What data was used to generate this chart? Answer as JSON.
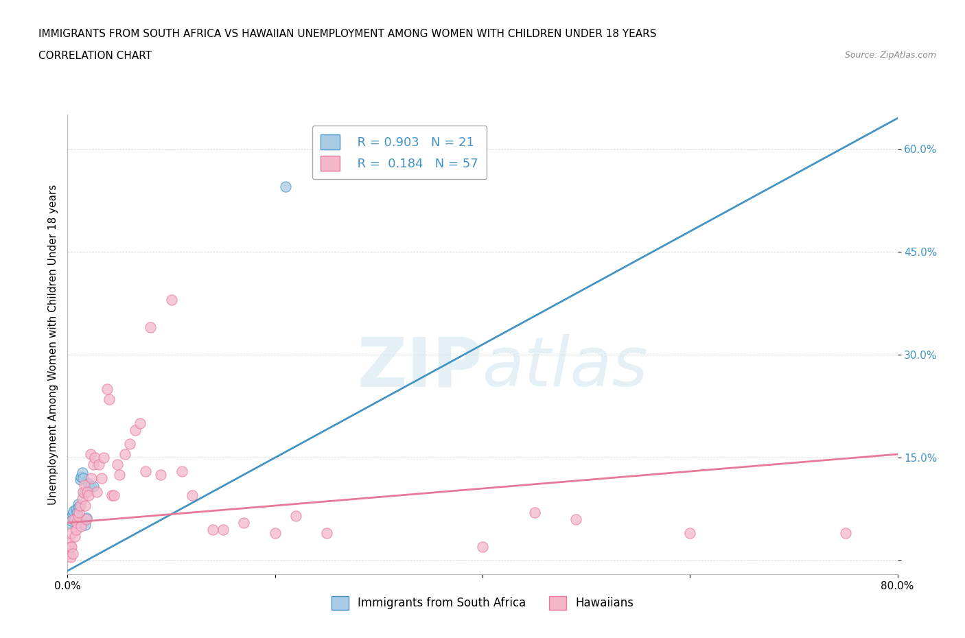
{
  "title_line1": "IMMIGRANTS FROM SOUTH AFRICA VS HAWAIIAN UNEMPLOYMENT AMONG WOMEN WITH CHILDREN UNDER 18 YEARS",
  "title_line2": "CORRELATION CHART",
  "source": "Source: ZipAtlas.com",
  "ylabel": "Unemployment Among Women with Children Under 18 years",
  "xlim": [
    0.0,
    0.8
  ],
  "ylim": [
    -0.02,
    0.65
  ],
  "yticks": [
    0.0,
    0.15,
    0.3,
    0.45,
    0.6
  ],
  "ytick_labels": [
    "",
    "15.0%",
    "30.0%",
    "45.0%",
    "60.0%"
  ],
  "xticks": [
    0.0,
    0.2,
    0.4,
    0.6,
    0.8
  ],
  "xtick_labels": [
    "0.0%",
    "",
    "",
    "",
    "80.0%"
  ],
  "watermark": "ZIPatlas",
  "color_blue": "#a8cce4",
  "color_pink": "#f4b8cb",
  "line_blue": "#4393c3",
  "line_pink": "#e8789a",
  "blue_scatter_x": [
    0.002,
    0.003,
    0.004,
    0.005,
    0.006,
    0.007,
    0.008,
    0.009,
    0.01,
    0.011,
    0.012,
    0.013,
    0.014,
    0.015,
    0.016,
    0.017,
    0.018,
    0.02,
    0.022,
    0.025,
    0.21
  ],
  "blue_scatter_y": [
    0.055,
    0.062,
    0.058,
    0.068,
    0.072,
    0.06,
    0.075,
    0.07,
    0.082,
    0.078,
    0.118,
    0.122,
    0.128,
    0.12,
    0.098,
    0.052,
    0.062,
    0.112,
    0.108,
    0.108,
    0.545
  ],
  "pink_scatter_x": [
    0.001,
    0.002,
    0.003,
    0.003,
    0.004,
    0.004,
    0.005,
    0.006,
    0.007,
    0.008,
    0.009,
    0.01,
    0.011,
    0.012,
    0.013,
    0.014,
    0.015,
    0.016,
    0.017,
    0.018,
    0.019,
    0.02,
    0.022,
    0.023,
    0.025,
    0.026,
    0.028,
    0.03,
    0.033,
    0.035,
    0.038,
    0.04,
    0.043,
    0.045,
    0.048,
    0.05,
    0.055,
    0.06,
    0.065,
    0.07,
    0.075,
    0.08,
    0.09,
    0.1,
    0.11,
    0.12,
    0.14,
    0.15,
    0.17,
    0.2,
    0.22,
    0.25,
    0.4,
    0.45,
    0.49,
    0.6,
    0.75
  ],
  "pink_scatter_y": [
    0.01,
    0.025,
    0.02,
    0.005,
    0.02,
    0.04,
    0.01,
    0.06,
    0.035,
    0.045,
    0.055,
    0.065,
    0.07,
    0.08,
    0.05,
    0.09,
    0.1,
    0.11,
    0.08,
    0.06,
    0.1,
    0.095,
    0.155,
    0.12,
    0.14,
    0.15,
    0.1,
    0.14,
    0.12,
    0.15,
    0.25,
    0.235,
    0.095,
    0.095,
    0.14,
    0.125,
    0.155,
    0.17,
    0.19,
    0.2,
    0.13,
    0.34,
    0.125,
    0.38,
    0.13,
    0.095,
    0.045,
    0.045,
    0.055,
    0.04,
    0.065,
    0.04,
    0.02,
    0.07,
    0.06,
    0.04,
    0.04
  ],
  "blue_trend_x": [
    0.0,
    0.8
  ],
  "blue_trend_y": [
    -0.015,
    0.645
  ],
  "pink_trend_x": [
    0.0,
    0.8
  ],
  "pink_trend_y": [
    0.055,
    0.155
  ]
}
